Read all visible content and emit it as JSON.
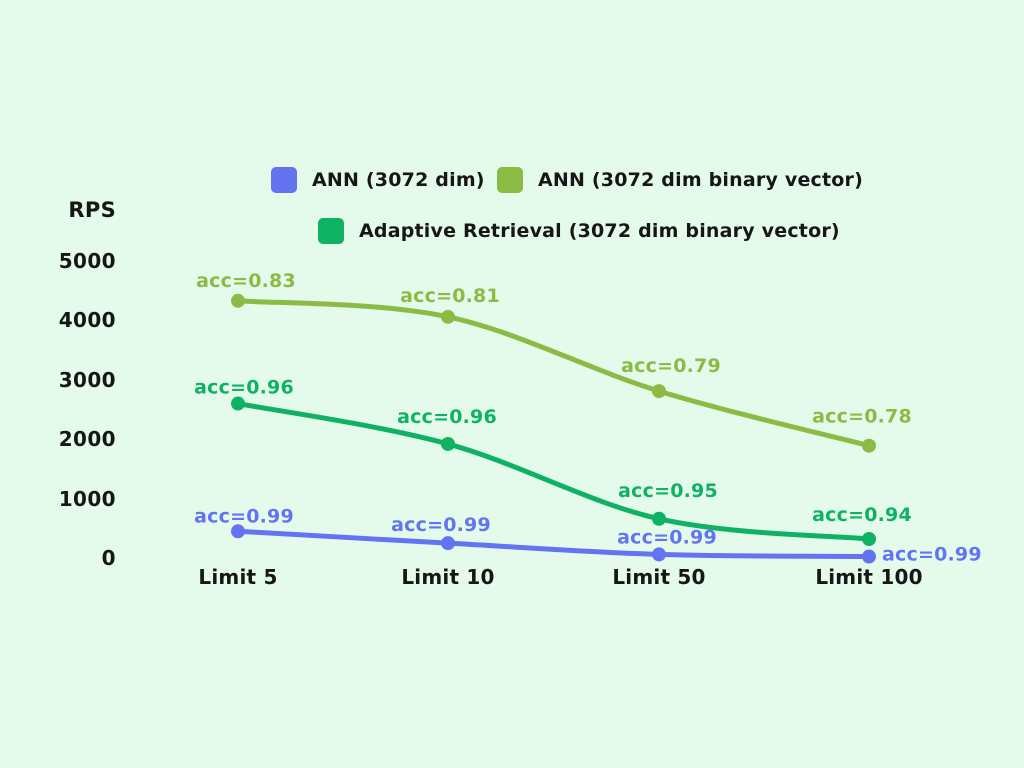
{
  "page": {
    "background": "#e4fbec",
    "text_color": "#161616"
  },
  "chart_data": {
    "type": "line",
    "title": "",
    "ylabel": "RPS",
    "xlabel": "",
    "categories": [
      "Limit 5",
      "Limit 10",
      "Limit 50",
      "Limit 100"
    ],
    "yticks": [
      5000,
      4000,
      3000,
      2000,
      1000,
      0
    ],
    "ylim": [
      0,
      5000
    ],
    "grid": false,
    "legend_position": "top",
    "series": [
      {
        "name": "ANN (3072 dim)",
        "color": "#6374f2",
        "values": [
          450,
          250,
          60,
          25
        ],
        "point_labels": [
          "acc=0.99",
          "acc=0.99",
          "acc=0.99",
          "acc=0.99"
        ]
      },
      {
        "name": "ANN (3072 dim binary vector)",
        "color": "#8cbb45",
        "values": [
          4330,
          4060,
          2810,
          1890
        ],
        "point_labels": [
          "acc=0.83",
          "acc=0.81",
          "acc=0.79",
          "acc=0.78"
        ]
      },
      {
        "name": "Adaptive Retrieval (3072 dim binary vector)",
        "color": "#0fb263",
        "values": [
          2600,
          1920,
          660,
          320
        ],
        "point_labels": [
          "acc=0.96",
          "acc=0.96",
          "acc=0.95",
          "acc=0.94"
        ]
      }
    ]
  }
}
